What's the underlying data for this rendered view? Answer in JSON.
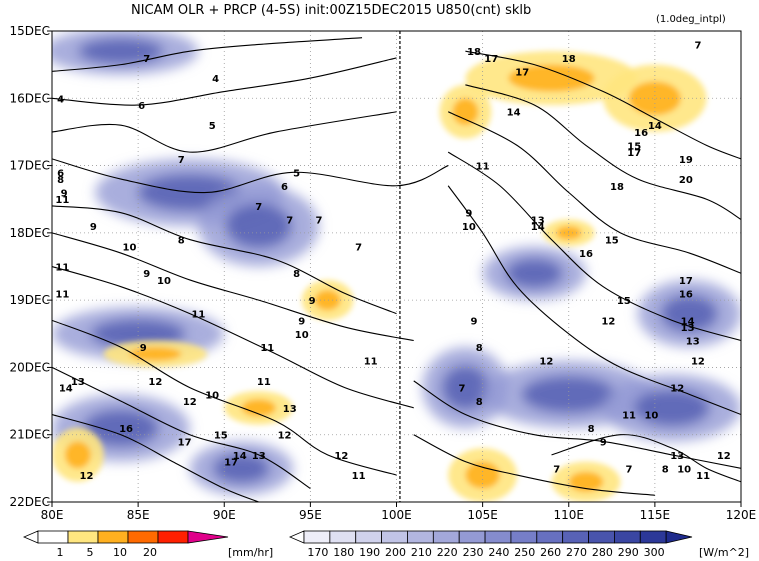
{
  "chart_data": {
    "type": "heatmap",
    "title": "NICAM  OLR + PRCP (4-5S) init:00Z15DEC2015 U850(cnt) sklb",
    "note": "(1.0deg_intpl)",
    "x_ticks": [
      "80E",
      "85E",
      "90E",
      "95E",
      "100E",
      "105E",
      "110E",
      "115E",
      "120E"
    ],
    "x_tick_values": [
      80,
      85,
      90,
      95,
      100,
      105,
      110,
      115,
      120
    ],
    "y_ticks": [
      "15DEC",
      "16DEC",
      "17DEC",
      "18DEC",
      "19DEC",
      "20DEC",
      "21DEC",
      "22DEC"
    ],
    "y_tick_values": [
      15,
      16,
      17,
      18,
      19,
      20,
      21,
      22
    ],
    "xlim": [
      80,
      120
    ],
    "ylim": [
      15,
      22
    ],
    "y_direction": "down",
    "grid": "dotted",
    "reference_line_lon": 100.2,
    "precip_colorbar": {
      "labels": [
        "1",
        "5",
        "10",
        "20"
      ],
      "unit": "[mm/hr]",
      "colors": [
        "#ffffff",
        "#ffe680",
        "#ffb020",
        "#ff6a00",
        "#ff2000",
        "#e0008a"
      ]
    },
    "olr_colorbar": {
      "labels": [
        "170",
        "180",
        "190",
        "200",
        "210",
        "220",
        "230",
        "240",
        "250",
        "260",
        "270",
        "280",
        "290",
        "300"
      ],
      "unit": "[W/m^2]",
      "colors": [
        "#eeeef8",
        "#dfe0f2",
        "#d0d2ec",
        "#c1c4e6",
        "#b2b6e0",
        "#a3a8da",
        "#949ad4",
        "#858cce",
        "#767ec8",
        "#6770c0",
        "#5862b6",
        "#4954ac",
        "#3a46a2",
        "#2c3898",
        "#1f2b8c"
      ]
    },
    "olr_low_regions": [
      {
        "lon": 84,
        "day": 15.3,
        "rx": 4.5,
        "ry": 0.35
      },
      {
        "lon": 88,
        "day": 17.4,
        "rx": 5.5,
        "ry": 0.5
      },
      {
        "lon": 92,
        "day": 17.9,
        "rx": 3.5,
        "ry": 0.6
      },
      {
        "lon": 85,
        "day": 19.5,
        "rx": 5,
        "ry": 0.4
      },
      {
        "lon": 84,
        "day": 20.9,
        "rx": 4,
        "ry": 0.5
      },
      {
        "lon": 91,
        "day": 21.5,
        "rx": 3,
        "ry": 0.4
      },
      {
        "lon": 104,
        "day": 20.3,
        "rx": 2.5,
        "ry": 0.6
      },
      {
        "lon": 110,
        "day": 20.4,
        "rx": 5,
        "ry": 0.5
      },
      {
        "lon": 116,
        "day": 20.6,
        "rx": 4,
        "ry": 0.5
      },
      {
        "lon": 117,
        "day": 19.2,
        "rx": 3,
        "ry": 0.5
      },
      {
        "lon": 108,
        "day": 18.6,
        "rx": 3,
        "ry": 0.4
      }
    ],
    "precip_regions": [
      {
        "lon": 109,
        "day": 15.7,
        "rx": 5,
        "ry": 0.4
      },
      {
        "lon": 104,
        "day": 16.2,
        "rx": 1.5,
        "ry": 0.4
      },
      {
        "lon": 115,
        "day": 16.0,
        "rx": 3,
        "ry": 0.5
      },
      {
        "lon": 96,
        "day": 19.0,
        "rx": 1.5,
        "ry": 0.3
      },
      {
        "lon": 86,
        "day": 19.8,
        "rx": 3,
        "ry": 0.2
      },
      {
        "lon": 105,
        "day": 21.6,
        "rx": 2,
        "ry": 0.4
      },
      {
        "lon": 111,
        "day": 21.7,
        "rx": 2,
        "ry": 0.3
      },
      {
        "lon": 81.5,
        "day": 21.3,
        "rx": 1.5,
        "ry": 0.4
      },
      {
        "lon": 110,
        "day": 18.0,
        "rx": 1.5,
        "ry": 0.2
      },
      {
        "lon": 92,
        "day": 20.6,
        "rx": 2,
        "ry": 0.25
      }
    ],
    "contour_lines": [
      {
        "level": 4,
        "points": [
          [
            80,
            15.6
          ],
          [
            84,
            15.5
          ],
          [
            88,
            15.3
          ],
          [
            92,
            15.2
          ],
          [
            98,
            15.1
          ]
        ]
      },
      {
        "level": 5,
        "points": [
          [
            80,
            16.0
          ],
          [
            85,
            16.1
          ],
          [
            90,
            15.9
          ],
          [
            95,
            15.7
          ],
          [
            100,
            15.4
          ]
        ]
      },
      {
        "level": 6,
        "points": [
          [
            80,
            16.5
          ],
          [
            84,
            16.4
          ],
          [
            88,
            16.8
          ],
          [
            93,
            16.5
          ],
          [
            100,
            16.2
          ]
        ]
      },
      {
        "level": 7,
        "points": [
          [
            80,
            16.9
          ],
          [
            84,
            17.2
          ],
          [
            89,
            17.4
          ],
          [
            94,
            17.1
          ],
          [
            100,
            17.3
          ],
          [
            103,
            17.0
          ]
        ]
      },
      {
        "level": 9,
        "points": [
          [
            80,
            17.6
          ],
          [
            84,
            17.7
          ],
          [
            88,
            18.1
          ],
          [
            93,
            18.4
          ],
          [
            97,
            18.9
          ],
          [
            100,
            19.2
          ]
        ]
      },
      {
        "level": 10,
        "points": [
          [
            80,
            18.0
          ],
          [
            84,
            18.3
          ],
          [
            88,
            18.7
          ],
          [
            92,
            19.0
          ],
          [
            97,
            19.4
          ],
          [
            101,
            19.6
          ]
        ]
      },
      {
        "level": 11,
        "points": [
          [
            80,
            18.5
          ],
          [
            84,
            18.8
          ],
          [
            88,
            19.2
          ],
          [
            93,
            19.8
          ],
          [
            97,
            20.3
          ],
          [
            101,
            20.6
          ]
        ]
      },
      {
        "level": 12,
        "points": [
          [
            80,
            19.3
          ],
          [
            84,
            19.7
          ],
          [
            88,
            20.3
          ],
          [
            93,
            20.8
          ],
          [
            96,
            21.3
          ],
          [
            100,
            21.6
          ]
        ]
      },
      {
        "level": 13,
        "points": [
          [
            80,
            20.0
          ],
          [
            84,
            20.5
          ],
          [
            88,
            21.0
          ],
          [
            92,
            21.3
          ],
          [
            95,
            21.8
          ]
        ]
      },
      {
        "level": 15,
        "points": [
          [
            80,
            20.7
          ],
          [
            84,
            21.0
          ],
          [
            87,
            21.4
          ],
          [
            90,
            21.8
          ],
          [
            92,
            22.0
          ]
        ]
      },
      {
        "level": 9,
        "points": [
          [
            103,
            17.3
          ],
          [
            105,
            18.0
          ],
          [
            107,
            18.8
          ],
          [
            110,
            19.5
          ],
          [
            113,
            20.0
          ],
          [
            117,
            20.4
          ],
          [
            120,
            20.7
          ]
        ]
      },
      {
        "level": 11,
        "points": [
          [
            103,
            16.8
          ],
          [
            106,
            17.3
          ],
          [
            109,
            18.1
          ],
          [
            112,
            18.8
          ],
          [
            116,
            19.3
          ],
          [
            120,
            19.6
          ]
        ]
      },
      {
        "level": 13,
        "points": [
          [
            103,
            16.2
          ],
          [
            107,
            16.7
          ],
          [
            110,
            17.4
          ],
          [
            113,
            18.0
          ],
          [
            117,
            18.3
          ],
          [
            120,
            18.6
          ]
        ]
      },
      {
        "level": 15,
        "points": [
          [
            104,
            15.8
          ],
          [
            108,
            16.1
          ],
          [
            111,
            16.7
          ],
          [
            114,
            17.2
          ],
          [
            118,
            17.5
          ],
          [
            120,
            17.8
          ]
        ]
      },
      {
        "level": 17,
        "points": [
          [
            104,
            15.3
          ],
          [
            108,
            15.5
          ],
          [
            112,
            15.9
          ],
          [
            115,
            16.3
          ],
          [
            118,
            16.7
          ],
          [
            120,
            16.9
          ]
        ]
      },
      {
        "level": 12,
        "points": [
          [
            101,
            20.2
          ],
          [
            104,
            20.7
          ],
          [
            108,
            21.0
          ],
          [
            112,
            21.1
          ],
          [
            116,
            21.3
          ],
          [
            120,
            21.5
          ]
        ]
      },
      {
        "level": 8,
        "points": [
          [
            101,
            21.0
          ],
          [
            104,
            21.4
          ],
          [
            107,
            21.6
          ],
          [
            111,
            21.8
          ],
          [
            115,
            21.9
          ]
        ]
      },
      {
        "level": 10,
        "points": [
          [
            109,
            21.3
          ],
          [
            113,
            21.0
          ],
          [
            116,
            21.2
          ],
          [
            118,
            21.5
          ],
          [
            120,
            21.7
          ]
        ]
      }
    ],
    "contour_labels": [
      {
        "text": "7",
        "lon": 85.5,
        "day": 15.4
      },
      {
        "text": "4",
        "lon": 80.5,
        "day": 16.0
      },
      {
        "text": "4",
        "lon": 89.5,
        "day": 15.7
      },
      {
        "text": "6",
        "lon": 85.2,
        "day": 16.1
      },
      {
        "text": "5",
        "lon": 89.3,
        "day": 16.4
      },
      {
        "text": "6",
        "lon": 80.5,
        "day": 17.1
      },
      {
        "text": "7",
        "lon": 87.5,
        "day": 16.9
      },
      {
        "text": "8",
        "lon": 80.5,
        "day": 17.2
      },
      {
        "text": "9",
        "lon": 80.7,
        "day": 17.4
      },
      {
        "text": "11",
        "lon": 80.6,
        "day": 17.5
      },
      {
        "text": "6",
        "lon": 93.5,
        "day": 17.3
      },
      {
        "text": "5",
        "lon": 94.2,
        "day": 17.1
      },
      {
        "text": "7",
        "lon": 92.0,
        "day": 17.6
      },
      {
        "text": "7",
        "lon": 93.8,
        "day": 17.8
      },
      {
        "text": "7",
        "lon": 95.5,
        "day": 17.8
      },
      {
        "text": "9",
        "lon": 82.4,
        "day": 17.9
      },
      {
        "text": "10",
        "lon": 84.5,
        "day": 18.2
      },
      {
        "text": "8",
        "lon": 87.5,
        "day": 18.1
      },
      {
        "text": "7",
        "lon": 97.8,
        "day": 18.2
      },
      {
        "text": "11",
        "lon": 80.6,
        "day": 18.5
      },
      {
        "text": "9",
        "lon": 85.5,
        "day": 18.6
      },
      {
        "text": "10",
        "lon": 86.5,
        "day": 18.7
      },
      {
        "text": "8",
        "lon": 94.2,
        "day": 18.6
      },
      {
        "text": "11",
        "lon": 80.6,
        "day": 18.9
      },
      {
        "text": "9",
        "lon": 95.1,
        "day": 19.0
      },
      {
        "text": "11",
        "lon": 88.5,
        "day": 19.2
      },
      {
        "text": "9",
        "lon": 94.5,
        "day": 19.3
      },
      {
        "text": "10",
        "lon": 94.5,
        "day": 19.5
      },
      {
        "text": "9",
        "lon": 85.3,
        "day": 19.7
      },
      {
        "text": "11",
        "lon": 92.5,
        "day": 19.7
      },
      {
        "text": "11",
        "lon": 98.5,
        "day": 19.9
      },
      {
        "text": "13",
        "lon": 81.5,
        "day": 20.2
      },
      {
        "text": "14",
        "lon": 80.8,
        "day": 20.3
      },
      {
        "text": "12",
        "lon": 86.0,
        "day": 20.2
      },
      {
        "text": "11",
        "lon": 92.3,
        "day": 20.2
      },
      {
        "text": "10",
        "lon": 89.3,
        "day": 20.4
      },
      {
        "text": "12",
        "lon": 88.0,
        "day": 20.5
      },
      {
        "text": "13",
        "lon": 93.8,
        "day": 20.6
      },
      {
        "text": "12",
        "lon": 93.5,
        "day": 21.0
      },
      {
        "text": "16",
        "lon": 84.3,
        "day": 20.9
      },
      {
        "text": "17",
        "lon": 87.7,
        "day": 21.1
      },
      {
        "text": "15",
        "lon": 89.8,
        "day": 21.0
      },
      {
        "text": "14",
        "lon": 90.9,
        "day": 21.3
      },
      {
        "text": "13",
        "lon": 92.0,
        "day": 21.3
      },
      {
        "text": "17",
        "lon": 90.4,
        "day": 21.4
      },
      {
        "text": "12",
        "lon": 96.8,
        "day": 21.3
      },
      {
        "text": "12",
        "lon": 82.0,
        "day": 21.6
      },
      {
        "text": "11",
        "lon": 97.8,
        "day": 21.6
      },
      {
        "text": "18",
        "lon": 104.5,
        "day": 15.3
      },
      {
        "text": "17",
        "lon": 105.5,
        "day": 15.4
      },
      {
        "text": "18",
        "lon": 110.0,
        "day": 15.4
      },
      {
        "text": "17",
        "lon": 107.3,
        "day": 15.6
      },
      {
        "text": "7",
        "lon": 117.5,
        "day": 15.2
      },
      {
        "text": "14",
        "lon": 106.8,
        "day": 16.2
      },
      {
        "text": "16",
        "lon": 114.2,
        "day": 16.5
      },
      {
        "text": "14",
        "lon": 115.0,
        "day": 16.4
      },
      {
        "text": "15",
        "lon": 113.8,
        "day": 16.7
      },
      {
        "text": "17",
        "lon": 113.8,
        "day": 16.8
      },
      {
        "text": "11",
        "lon": 105.0,
        "day": 17.0
      },
      {
        "text": "19",
        "lon": 116.8,
        "day": 16.9
      },
      {
        "text": "20",
        "lon": 116.8,
        "day": 17.2
      },
      {
        "text": "18",
        "lon": 112.8,
        "day": 17.3
      },
      {
        "text": "9",
        "lon": 104.2,
        "day": 17.7
      },
      {
        "text": "10",
        "lon": 104.2,
        "day": 17.9
      },
      {
        "text": "13",
        "lon": 108.2,
        "day": 17.8
      },
      {
        "text": "14",
        "lon": 108.2,
        "day": 17.9
      },
      {
        "text": "15",
        "lon": 112.5,
        "day": 18.1
      },
      {
        "text": "16",
        "lon": 111.0,
        "day": 18.3
      },
      {
        "text": "17",
        "lon": 116.8,
        "day": 18.7
      },
      {
        "text": "16",
        "lon": 116.8,
        "day": 18.9
      },
      {
        "text": "15",
        "lon": 113.2,
        "day": 19.0
      },
      {
        "text": "12",
        "lon": 112.3,
        "day": 19.3
      },
      {
        "text": "14",
        "lon": 116.9,
        "day": 19.3
      },
      {
        "text": "13",
        "lon": 116.9,
        "day": 19.4
      },
      {
        "text": "9",
        "lon": 104.5,
        "day": 19.3
      },
      {
        "text": "13",
        "lon": 117.2,
        "day": 19.6
      },
      {
        "text": "8",
        "lon": 104.8,
        "day": 19.7
      },
      {
        "text": "12",
        "lon": 108.7,
        "day": 19.9
      },
      {
        "text": "12",
        "lon": 117.5,
        "day": 19.9
      },
      {
        "text": "7",
        "lon": 103.8,
        "day": 20.3
      },
      {
        "text": "12",
        "lon": 116.3,
        "day": 20.3
      },
      {
        "text": "8",
        "lon": 104.8,
        "day": 20.5
      },
      {
        "text": "11",
        "lon": 113.5,
        "day": 20.7
      },
      {
        "text": "10",
        "lon": 114.8,
        "day": 20.7
      },
      {
        "text": "8",
        "lon": 111.3,
        "day": 20.9
      },
      {
        "text": "9",
        "lon": 112.0,
        "day": 21.1
      },
      {
        "text": "12",
        "lon": 119.0,
        "day": 21.3
      },
      {
        "text": "13",
        "lon": 116.3,
        "day": 21.3
      },
      {
        "text": "7",
        "lon": 113.5,
        "day": 21.5
      },
      {
        "text": "7",
        "lon": 109.3,
        "day": 21.5
      },
      {
        "text": "8",
        "lon": 115.6,
        "day": 21.5
      },
      {
        "text": "10",
        "lon": 116.7,
        "day": 21.5
      },
      {
        "text": "11",
        "lon": 117.8,
        "day": 21.6
      }
    ]
  }
}
